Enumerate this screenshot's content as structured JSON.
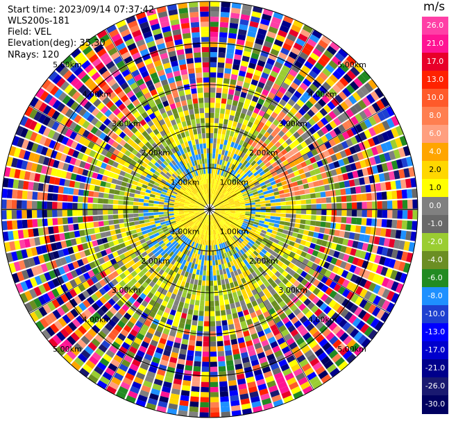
{
  "header": {
    "start_time": "Start time: 2023/09/14 07:37:42",
    "instrument": "WLS200s-181",
    "field": "Field: VEL",
    "elevation": "Elevation(deg): 35.30",
    "nrays": "NRays: 120"
  },
  "colorbar": {
    "units": "m/s",
    "labels": [
      "26.0",
      "21.0",
      "17.0",
      "13.0",
      "10.0",
      "8.0",
      "6.0",
      "4.0",
      "2.0",
      "1.0",
      "0.0",
      "-1.0",
      "-2.0",
      "-4.0",
      "-6.0",
      "-8.0",
      "-10.0",
      "-13.0",
      "-17.0",
      "-21.0",
      "-26.0",
      "-30.0"
    ],
    "colors": [
      "#ff3fa6",
      "#ff1493",
      "#e8002a",
      "#ff2200",
      "#ff5a2a",
      "#ff7f50",
      "#ff9f7f",
      "#ffa500",
      "#ffd700",
      "#ffff00",
      "#808080",
      "#696969",
      "#9acd32",
      "#6b8e23",
      "#228b22",
      "#1e90ff",
      "#1e40d0",
      "#0000ff",
      "#0000cd",
      "#00008b",
      "#191970",
      "#000060"
    ]
  },
  "ring_labels": [
    "1.00km",
    "2.00km",
    "3.00km",
    "4.00km",
    "5.00km"
  ]
}
